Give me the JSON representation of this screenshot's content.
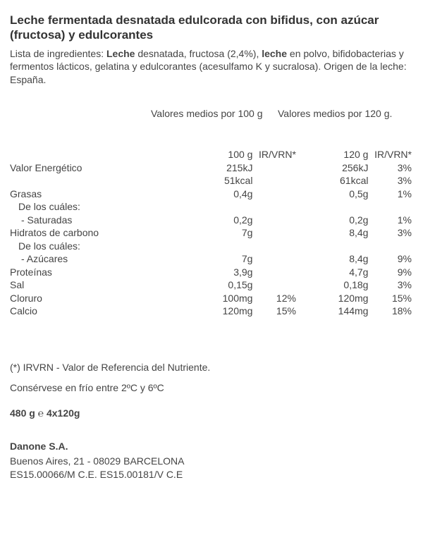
{
  "title": "Leche fermentada desnatada edulcorada con bifidus, con azúcar (fructosa) y edulcorantes",
  "ingredients": {
    "prefix": "Lista de ingredientes: ",
    "b1": "Leche",
    "t1": " desnatada, fructosa (2,4%), ",
    "b2": "leche",
    "t2": " en polvo, bifidobacterias y fermentos lácticos, gelatina y edulcorantes (acesulfamo K y sucralosa). Origen de la leche: España."
  },
  "column_headers": {
    "c1": "Valores medios por 100 g",
    "c2": "Valores medios por 120 g."
  },
  "sub_headers": {
    "h100": "100 g",
    "r100": "IR/VRN*",
    "h120": "120 g",
    "r120": "IR/VRN*"
  },
  "rows": {
    "energy": {
      "label": "Valor  Energético",
      "v100": "215kJ",
      "r100": "",
      "v120": "256kJ",
      "r120": "3%"
    },
    "energy2": {
      "label": "",
      "v100": "51kcal",
      "r100": "",
      "v120": "61kcal",
      "r120": "3%"
    },
    "fat": {
      "label": "Grasas",
      "v100": "0,4g",
      "r100": "",
      "v120": "0,5g",
      "r120": "1%"
    },
    "fat_of": {
      "label": "De los cuáles:",
      "v100": "",
      "r100": "",
      "v120": "",
      "r120": ""
    },
    "sat": {
      "label": " - Saturadas",
      "v100": "0,2g",
      "r100": "",
      "v120": "0,2g",
      "r120": "1%"
    },
    "carb": {
      "label": "Hidratos  de  carbono",
      "v100": "7g",
      "r100": "",
      "v120": "8,4g",
      "r120": "3%"
    },
    "carb_of": {
      "label": "De los cuáles:",
      "v100": "",
      "r100": "",
      "v120": "",
      "r120": ""
    },
    "sugar": {
      "label": " - Azúcares",
      "v100": "7g",
      "r100": "",
      "v120": "8,4g",
      "r120": "9%"
    },
    "prot": {
      "label": "Proteínas",
      "v100": "3,9g",
      "r100": "",
      "v120": "4,7g",
      "r120": "9%"
    },
    "salt": {
      "label": "Sal",
      "v100": "0,15g",
      "r100": "",
      "v120": "0,18g",
      "r120": "3%"
    },
    "chlor": {
      "label": "Cloruro",
      "v100": "100mg",
      "r100": "12%",
      "v120": "120mg",
      "r120": "15%"
    },
    "calc": {
      "label": "Calcio",
      "v100": "120mg",
      "r100": "15%",
      "v120": "144mg",
      "r120": "18%"
    }
  },
  "footnote": "(*) IRVRN - Valor de Referencia del Nutriente.",
  "storage": "Consérvese en frío entre 2ºC y 6ºC",
  "weight": "480 g ℮ 4x120g",
  "company": {
    "name": "Danone S.A.",
    "address": "Buenos Aires, 21 - 08029 BARCELONA",
    "codes": "ES15.00066/M C.E. ES15.00181/V C.E"
  }
}
